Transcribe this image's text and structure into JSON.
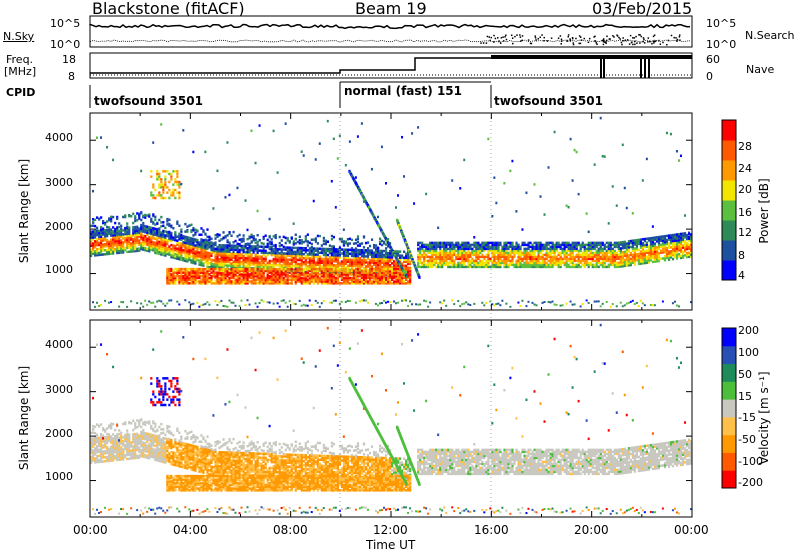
{
  "header": {
    "station": "Blackstone (fitACF)",
    "beam": "Beam 19",
    "date": "03/Feb/2015"
  },
  "top_panel": {
    "left_label": "N.Sky",
    "right_label": "N.Search",
    "left_ticks": [
      "10^5",
      "10^0"
    ],
    "right_ticks": [
      "10^5",
      "10^0"
    ]
  },
  "freq_panel": {
    "left_label_1": "Freq.",
    "left_label_2": "[MHz]",
    "right_label": "Nave",
    "left_ticks": [
      "18",
      "8"
    ],
    "right_ticks": [
      "60",
      "0"
    ]
  },
  "cpid": {
    "label": "CPID",
    "segments": [
      {
        "text": "twofsound 3501",
        "start_hour": 0
      },
      {
        "text": "normal (fast) 151",
        "start_hour": 10
      },
      {
        "text": "twofsound 3501",
        "start_hour": 16
      }
    ]
  },
  "power_panel": {
    "ylabel": "Slant Range [km]",
    "yticks": [
      "1000",
      "2000",
      "3000",
      "4000"
    ],
    "colorbar_label": "Power [dB]",
    "colorbar_ticks": [
      "4",
      "8",
      "12",
      "16",
      "20",
      "24",
      "28"
    ],
    "colorbar_colors": [
      "#0000ff",
      "#1e50a0",
      "#2e8b57",
      "#5cbf40",
      "#f2e600",
      "#ff9900",
      "#ff5a00",
      "#ff0000"
    ]
  },
  "velocity_panel": {
    "ylabel": "Slant Range [km]",
    "yticks": [
      "1000",
      "2000",
      "3000",
      "4000"
    ],
    "colorbar_label": "Velocity [m s⁻¹]",
    "colorbar_ticks": [
      "-200",
      "-100",
      "-50",
      "-15",
      "15",
      "50",
      "100",
      "200"
    ],
    "colorbar_colors": [
      "#ff0000",
      "#ff5a00",
      "#ff9900",
      "#ffc04a",
      "#c8c8c0",
      "#4cbe3c",
      "#1e8c5a",
      "#2850b4",
      "#0000ff"
    ]
  },
  "xaxis": {
    "ticks": [
      "00:00",
      "04:00",
      "08:00",
      "12:00",
      "16:00",
      "20:00",
      "00:00"
    ],
    "label": "Time UT"
  },
  "chart_data": {
    "type": "heatmap",
    "x_range_hours": [
      0,
      24
    ],
    "y_range_km": [
      180,
      4600
    ],
    "panels": [
      "power",
      "velocity"
    ],
    "features": [
      {
        "name": "main band",
        "start_hour": 0,
        "end_hour": 12.5,
        "range_km": [
          1600,
          1900
        ]
      },
      {
        "name": "lower band",
        "start_hour": 3,
        "end_hour": 12.8,
        "range_km": [
          800,
          1000
        ]
      },
      {
        "name": "night band",
        "start_hour": 13,
        "end_hour": 24,
        "range_km": [
          1200,
          1700
        ]
      }
    ]
  }
}
